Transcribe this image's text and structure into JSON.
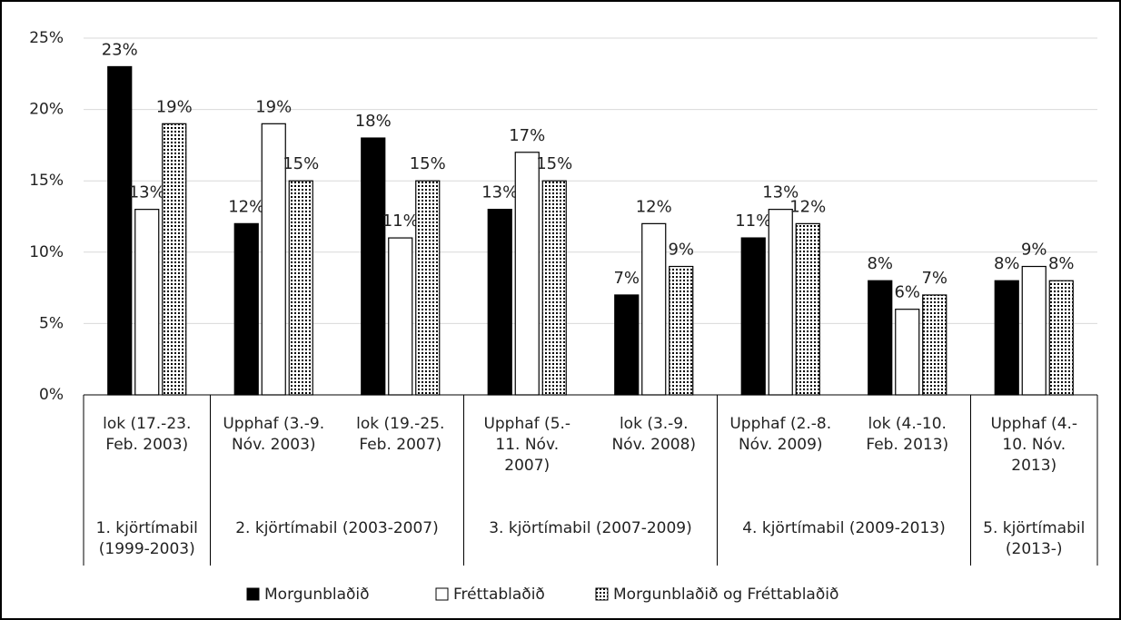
{
  "chart_data": {
    "type": "bar",
    "categories": [
      [
        "lok (17.-23.",
        "Feb. 2003)"
      ],
      [
        "Upphaf (3.-9.",
        "Nóv. 2003)"
      ],
      [
        "lok (19.-25.",
        "Feb. 2007)"
      ],
      [
        "Upphaf (5.-",
        "11. Nóv.",
        "2007)"
      ],
      [
        "lok (3.-9.",
        "Nóv. 2008)"
      ],
      [
        "Upphaf (2.-8.",
        "Nóv. 2009)"
      ],
      [
        "lok (4.-10.",
        "Feb. 2013)"
      ],
      [
        "Upphaf (4.-",
        "10. Nóv.",
        "2013)"
      ]
    ],
    "groups": [
      {
        "name": [
          "1. kjörtímabil",
          "(1999-2003)"
        ],
        "size": 1
      },
      {
        "name": [
          "2. kjörtímabil (2003-2007)"
        ],
        "size": 2
      },
      {
        "name": [
          "3. kjörtímabil (2007-2009)"
        ],
        "size": 2
      },
      {
        "name": [
          "4. kjörtímabil (2009-2013)"
        ],
        "size": 2
      },
      {
        "name": [
          "5. kjörtímabil",
          "(2013-)"
        ],
        "size": 1
      }
    ],
    "series": [
      {
        "name": "Morgunblaðið",
        "color": "#000000",
        "values": [
          23,
          12,
          18,
          13,
          7,
          11,
          8,
          8
        ],
        "value_labels": [
          "23%",
          "12%",
          "18%",
          "13%",
          "7%",
          "11%",
          "8%",
          "8%"
        ]
      },
      {
        "name": "Fréttablaðið",
        "color": "#ffffff",
        "values": [
          13,
          19,
          11,
          17,
          12,
          13,
          6,
          9
        ],
        "value_labels": [
          "13%",
          "19%",
          "11%",
          "17%",
          "12%",
          "13%",
          "6%",
          "9%"
        ]
      },
      {
        "name": "Morgunblaðið og Fréttablaðið",
        "color": "#ffffff",
        "pattern": "dots",
        "values": [
          19,
          15,
          15,
          15,
          9,
          12,
          7,
          8
        ],
        "value_labels": [
          "19%",
          "15%",
          "15%",
          "15%",
          "9%",
          "12%",
          "7%",
          "8%"
        ]
      }
    ],
    "ylim": [
      0,
      25
    ],
    "yticks": [
      {
        "value": 0,
        "label": "0%"
      },
      {
        "value": 5,
        "label": "5%"
      },
      {
        "value": 10,
        "label": "10%"
      },
      {
        "value": 15,
        "label": "15%"
      },
      {
        "value": 20,
        "label": "20%"
      },
      {
        "value": 25,
        "label": "25%"
      }
    ],
    "grid": true,
    "legend": "bottom"
  }
}
